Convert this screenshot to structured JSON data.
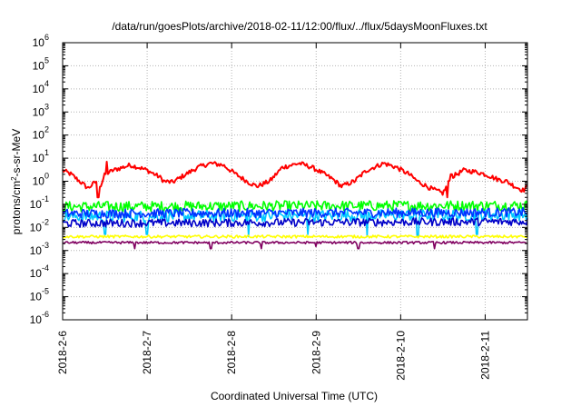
{
  "chart_data": {
    "type": "line",
    "title": "/data/run/goesPlots/archive/2018-02-11/12:00/flux/../flux/5daysMoonFluxes.txt",
    "xlabel": "Coordinated Universal Time (UTC)",
    "ylabel_parts": {
      "pre": "protons/cm",
      "sup": "2",
      "post": "-s-sr-MeV"
    },
    "y_scale": "log",
    "ylim_exp": [
      -6,
      6
    ],
    "y_ticks": [
      {
        "base": "10",
        "exp": "6"
      },
      {
        "base": "10",
        "exp": "5"
      },
      {
        "base": "10",
        "exp": "4"
      },
      {
        "base": "10",
        "exp": "3"
      },
      {
        "base": "10",
        "exp": "2"
      },
      {
        "base": "10",
        "exp": "1"
      },
      {
        "base": "10",
        "exp": "0"
      },
      {
        "base": "10",
        "exp": "-1"
      },
      {
        "base": "10",
        "exp": "-2"
      },
      {
        "base": "10",
        "exp": "-3"
      },
      {
        "base": "10",
        "exp": "-4"
      },
      {
        "base": "10",
        "exp": "-5"
      },
      {
        "base": "10",
        "exp": "-6"
      }
    ],
    "x_range_days": [
      "2018-02-06",
      "2018-02-11 12:00"
    ],
    "x_tick_labels": [
      "2018-2-6",
      "2018-2-7",
      "2018-2-8",
      "2018-2-9",
      "2018-2-10",
      "2018-2-11"
    ],
    "grid": true,
    "series": [
      {
        "color": "#ff0000",
        "base": [
          [
            0,
            3.0
          ],
          [
            0.1,
            2.0
          ],
          [
            0.2,
            1.0
          ],
          [
            0.3,
            0.5
          ],
          [
            0.4,
            1.0
          ],
          [
            0.45,
            0.6
          ],
          [
            0.5,
            2.0
          ],
          [
            0.6,
            3.0
          ],
          [
            0.8,
            5.0
          ],
          [
            0.9,
            4.0
          ],
          [
            1.0,
            3.0
          ],
          [
            1.15,
            1.5
          ],
          [
            1.2,
            1.0
          ],
          [
            1.3,
            0.9
          ],
          [
            1.4,
            1.5
          ],
          [
            1.6,
            4.0
          ],
          [
            1.75,
            6.0
          ],
          [
            1.9,
            5.0
          ],
          [
            2.05,
            2.0
          ],
          [
            2.2,
            0.9
          ],
          [
            2.3,
            0.6
          ],
          [
            2.45,
            1.0
          ],
          [
            2.6,
            4.0
          ],
          [
            2.8,
            6.0
          ],
          [
            2.95,
            4.0
          ],
          [
            3.1,
            2.0
          ],
          [
            3.2,
            1.2
          ],
          [
            3.3,
            0.6
          ],
          [
            3.45,
            1.0
          ],
          [
            3.6,
            3.0
          ],
          [
            3.8,
            6.0
          ],
          [
            3.95,
            4.0
          ],
          [
            4.1,
            2.0
          ],
          [
            4.2,
            1.0
          ],
          [
            4.35,
            0.5
          ],
          [
            4.5,
            0.3
          ],
          [
            4.6,
            1.5
          ],
          [
            4.75,
            3.0
          ],
          [
            4.9,
            2.5
          ],
          [
            5.0,
            2.0
          ],
          [
            5.15,
            1.2
          ],
          [
            5.25,
            1.0
          ],
          [
            5.35,
            0.6
          ],
          [
            5.45,
            0.4
          ],
          [
            5.5,
            0.6
          ]
        ],
        "noise": 0.2,
        "spikes": [
          [
            0.42,
            0.2
          ],
          [
            0.52,
            7.0
          ],
          [
            4.55,
            0.2
          ],
          [
            4.6,
            2.0
          ]
        ]
      },
      {
        "color": "#00ff00",
        "base": [
          [
            0,
            0.08
          ],
          [
            5.5,
            0.09
          ]
        ],
        "noise": 0.45,
        "spikes": []
      },
      {
        "color": "#00c8ff",
        "base": [
          [
            0,
            0.03
          ],
          [
            5.5,
            0.035
          ]
        ],
        "noise": 0.5,
        "spikes": [
          [
            0.5,
            0.005
          ],
          [
            1.0,
            0.005
          ],
          [
            2.2,
            0.004
          ],
          [
            2.9,
            0.005
          ],
          [
            3.6,
            0.004
          ],
          [
            4.2,
            0.004
          ],
          [
            4.9,
            0.005
          ]
        ]
      },
      {
        "color": "#0032ff",
        "base": [
          [
            0,
            0.04
          ],
          [
            5.5,
            0.045
          ]
        ],
        "noise": 0.4,
        "spikes": []
      },
      {
        "color": "#0000c8",
        "base": [
          [
            0,
            0.015
          ],
          [
            5.5,
            0.018
          ]
        ],
        "noise": 0.35,
        "spikes": []
      },
      {
        "color": "#ffff00",
        "base": [
          [
            0,
            0.004
          ],
          [
            5.5,
            0.004
          ]
        ],
        "noise": 0.12,
        "spikes": []
      },
      {
        "color": "#800060",
        "base": [
          [
            0,
            0.0022
          ],
          [
            5.5,
            0.0022
          ]
        ],
        "noise": 0.1,
        "spikes": [
          [
            0.85,
            0.0012
          ],
          [
            1.75,
            0.0012
          ],
          [
            2.35,
            0.0012
          ],
          [
            3.0,
            0.0015
          ],
          [
            3.5,
            0.0012
          ],
          [
            4.4,
            0.0012
          ]
        ]
      }
    ]
  }
}
